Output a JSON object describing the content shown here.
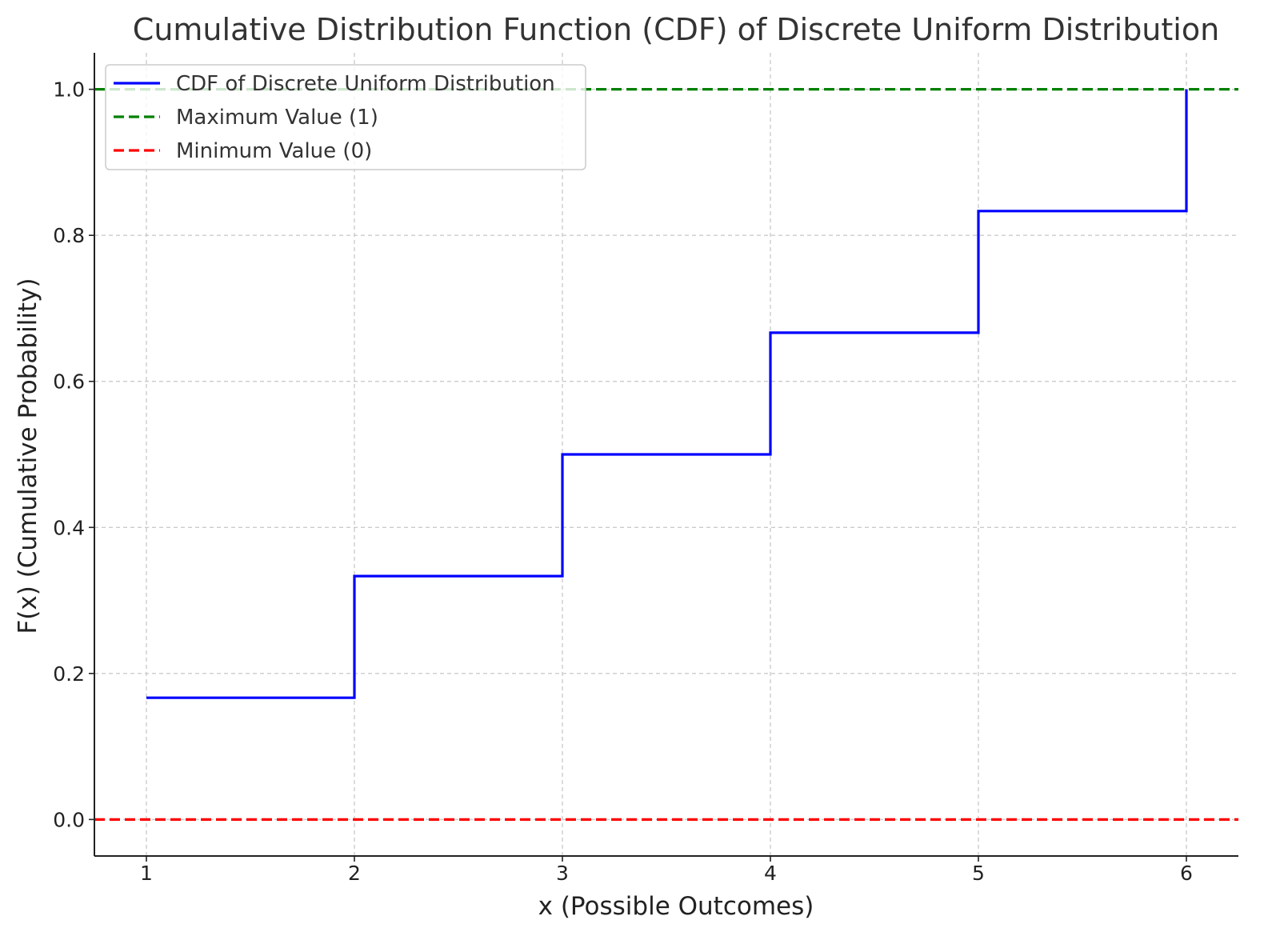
{
  "chart_data": {
    "type": "line",
    "title": "Cumulative Distribution Function (CDF) of Discrete Uniform Distribution",
    "xlabel": "x (Possible Outcomes)",
    "ylabel": "F(x) (Cumulative Probability)",
    "xlim": [
      0.75,
      6.25
    ],
    "ylim": [
      -0.05,
      1.05
    ],
    "xticks": [
      1,
      2,
      3,
      4,
      5,
      6
    ],
    "xtick_labels": [
      "1",
      "2",
      "3",
      "4",
      "5",
      "6"
    ],
    "yticks": [
      0.0,
      0.2,
      0.4,
      0.6,
      0.8,
      1.0
    ],
    "ytick_labels": [
      "0.0",
      "0.2",
      "0.4",
      "0.6",
      "0.8",
      "1.0"
    ],
    "grid": true,
    "legend_position": "top-left",
    "series": [
      {
        "name": "CDF of Discrete Uniform Distribution",
        "style": "step",
        "color": "#0000ff",
        "x": [
          1,
          2,
          3,
          4,
          5,
          6
        ],
        "y": [
          0.1667,
          0.3333,
          0.5,
          0.6667,
          0.8333,
          1.0
        ]
      }
    ],
    "reference_lines": [
      {
        "name": "Maximum Value (1)",
        "y": 1.0,
        "color": "#008000",
        "dash": "dashed"
      },
      {
        "name": "Minimum Value (0)",
        "y": 0.0,
        "color": "#ff0000",
        "dash": "dashed"
      }
    ]
  }
}
